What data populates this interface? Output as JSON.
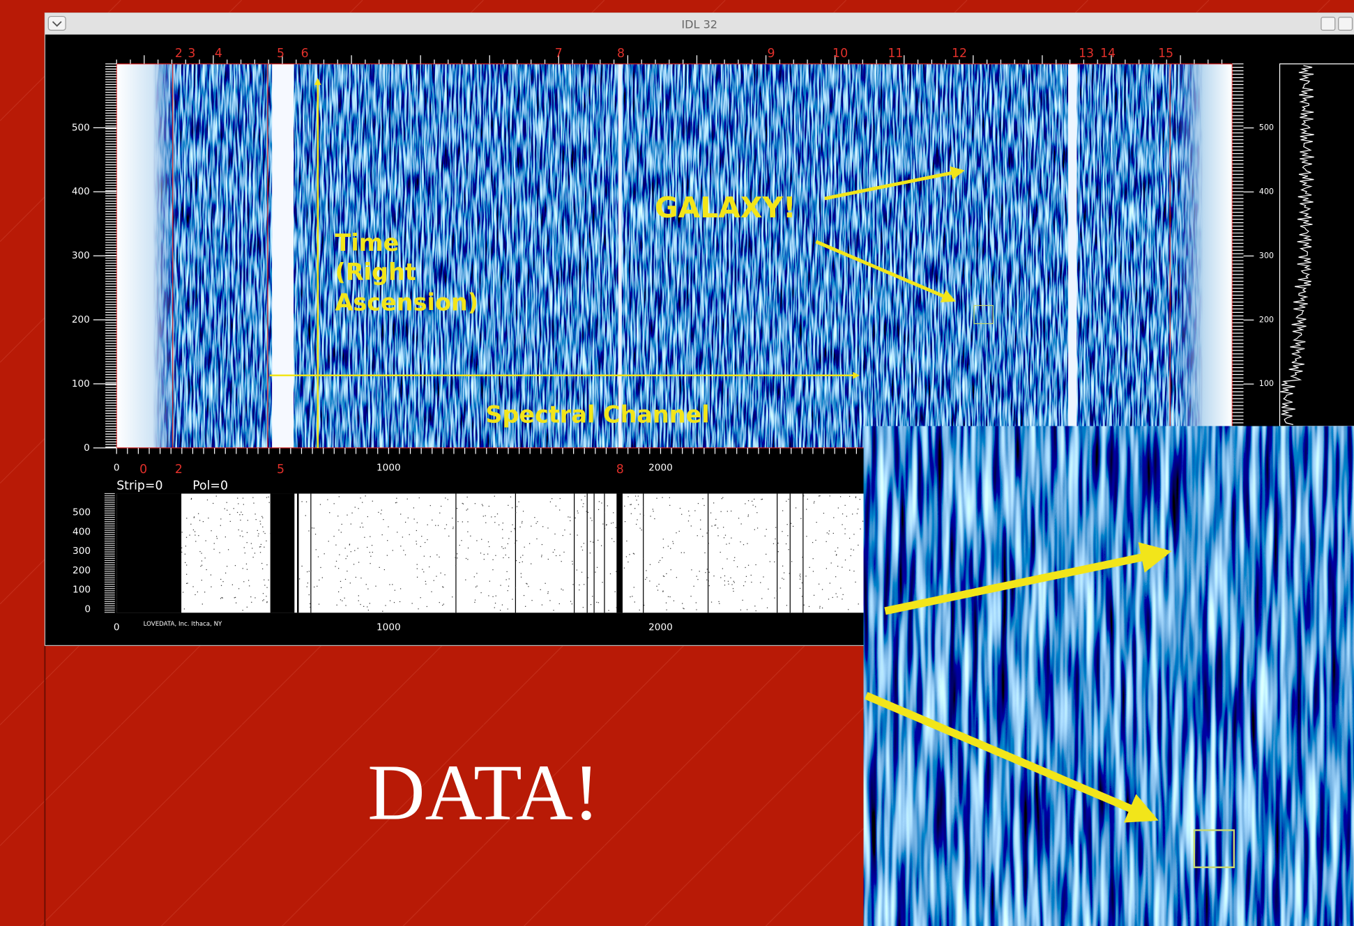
{
  "window": {
    "title": "IDL 32"
  },
  "plot": {
    "channel_labels": [
      "2",
      "3",
      "4",
      "5",
      "6",
      "7",
      "8",
      "9",
      "10",
      "11",
      "12",
      "13",
      "14",
      "15"
    ],
    "y_ticks": [
      "0",
      "100",
      "200",
      "300",
      "400",
      "500"
    ],
    "x_ticks": [
      "0",
      "1000",
      "2000"
    ],
    "marker_labels": [
      "0",
      "2",
      "5",
      "8"
    ],
    "strip": "Strip=0",
    "pol": "Pol=0"
  },
  "lower_plot": {
    "y_ticks": [
      "0",
      "100",
      "200",
      "300",
      "400",
      "500"
    ],
    "x_ticks": [
      "0",
      "1000",
      "2000"
    ],
    "credit": "LOVEDATA, Inc. Ithaca, NY"
  },
  "side_plot": {
    "y_ticks": [
      "100",
      "200",
      "300",
      "400",
      "500"
    ]
  },
  "annotations": {
    "galaxy": "GALAXY!",
    "time": [
      "Time",
      "(Right",
      "Ascension)"
    ],
    "spectral": "Spectral Channel"
  },
  "slide": {
    "title": "DATA!"
  }
}
